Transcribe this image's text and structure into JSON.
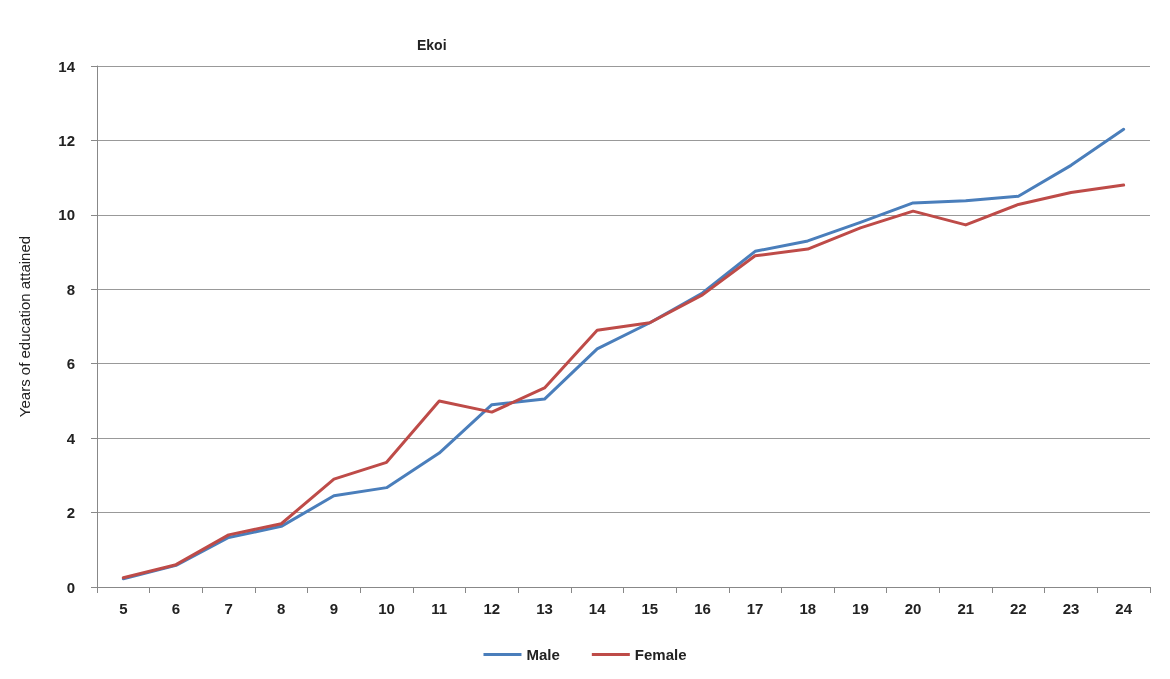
{
  "chart_data": {
    "type": "line",
    "title": "Ekoi",
    "ylabel": "Years of education attained",
    "categories": [
      "5",
      "6",
      "7",
      "8",
      "9",
      "10",
      "11",
      "12",
      "13",
      "14",
      "15",
      "16",
      "17",
      "18",
      "19",
      "20",
      "21",
      "22",
      "23",
      "24"
    ],
    "series": [
      {
        "name": "Male",
        "color": "#4a7ebb",
        "values": [
          0.22,
          0.58,
          1.33,
          1.63,
          2.45,
          2.67,
          3.6,
          4.9,
          5.05,
          6.4,
          7.1,
          7.9,
          9.02,
          9.3,
          9.8,
          10.32,
          10.38,
          10.5,
          11.33,
          12.3
        ]
      },
      {
        "name": "Female",
        "color": "#be4b48",
        "values": [
          0.25,
          0.6,
          1.4,
          1.7,
          2.9,
          3.35,
          5.0,
          4.7,
          5.35,
          6.9,
          7.1,
          7.85,
          8.9,
          9.08,
          9.65,
          10.1,
          9.73,
          10.28,
          10.6,
          10.8
        ]
      }
    ],
    "ylim": [
      0,
      14
    ],
    "yticks": [
      0,
      2,
      4,
      6,
      8,
      10,
      12,
      14
    ],
    "grid": "y",
    "legend": "bottom",
    "marker": "none",
    "line_style": "solid"
  }
}
